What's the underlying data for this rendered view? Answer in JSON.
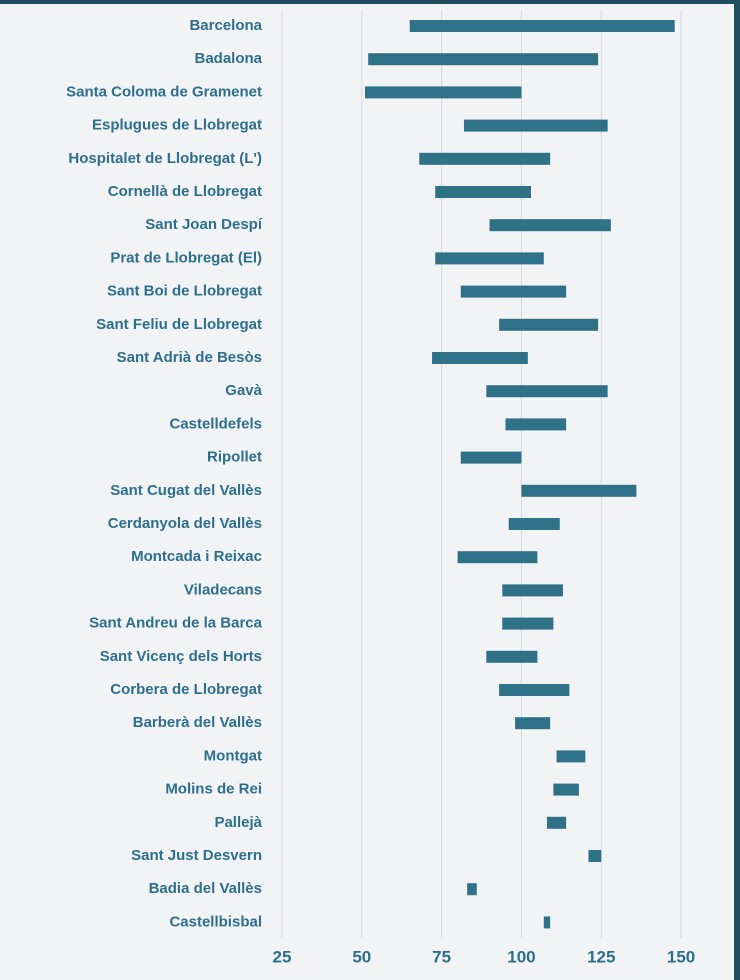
{
  "chart_data": {
    "type": "floating-bar",
    "orientation": "horizontal",
    "categories": [
      "Barcelona",
      "Badalona",
      "Santa Coloma de Gramenet",
      "Esplugues de Llobregat",
      "Hospitalet de Llobregat (L')",
      "Cornellà de Llobregat",
      "Sant Joan Despí",
      "Prat de Llobregat (El)",
      "Sant Boi de Llobregat",
      "Sant Feliu de Llobregat",
      "Sant Adrià de Besòs",
      "Gavà",
      "Castelldefels",
      "Ripollet",
      "Sant Cugat del Vallès",
      "Cerdanyola del Vallès",
      "Montcada i Reixac",
      "Viladecans",
      "Sant Andreu de la Barca",
      "Sant Vicenç dels Horts",
      "Corbera de Llobregat",
      "Barberà del Vallès",
      "Montgat",
      "Molins de Rei",
      "Pallejà",
      "Sant Just Desvern",
      "Badia del Vallès",
      "Castellbisbal"
    ],
    "low": [
      65,
      52,
      51,
      82,
      68,
      73,
      90,
      73,
      81,
      93,
      72,
      89,
      95,
      81,
      100,
      96,
      80,
      94,
      94,
      89,
      93,
      98,
      111,
      110,
      108,
      121,
      83,
      107
    ],
    "high": [
      148,
      124,
      100,
      127,
      109,
      103,
      128,
      107,
      114,
      124,
      102,
      127,
      114,
      100,
      136,
      112,
      105,
      113,
      110,
      105,
      115,
      109,
      120,
      118,
      114,
      125,
      86,
      109
    ],
    "color": "#2f7186",
    "xlim": [
      25,
      160
    ],
    "xticks": [
      25,
      50,
      75,
      100,
      125,
      150
    ],
    "grid": true
  }
}
